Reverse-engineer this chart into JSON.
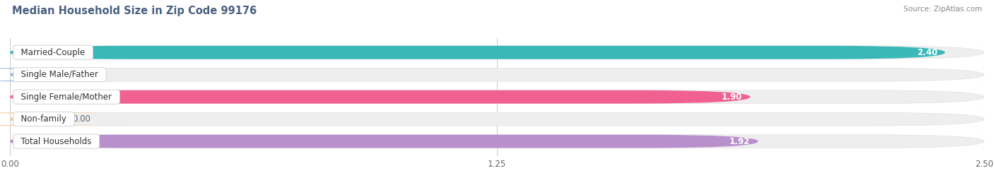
{
  "title": "Median Household Size in Zip Code 99176",
  "source": "Source: ZipAtlas.com",
  "categories": [
    "Married-Couple",
    "Single Male/Father",
    "Single Female/Mother",
    "Non-family",
    "Total Households"
  ],
  "values": [
    2.4,
    0.0,
    1.9,
    0.0,
    1.92
  ],
  "bar_colors": [
    "#3ab8b8",
    "#a0b4e0",
    "#f06090",
    "#f5c898",
    "#b890cc"
  ],
  "bar_bg_color": "#eeeeee",
  "xlim": [
    0,
    2.5
  ],
  "xticks": [
    0.0,
    1.25,
    2.5
  ],
  "xtick_labels": [
    "0.00",
    "1.25",
    "2.50"
  ],
  "label_fontsize": 8.5,
  "title_fontsize": 10.5,
  "value_fontsize": 8.5,
  "bar_height": 0.6,
  "background_color": "#ffffff",
  "title_color": "#4a6080",
  "source_color": "#888888"
}
